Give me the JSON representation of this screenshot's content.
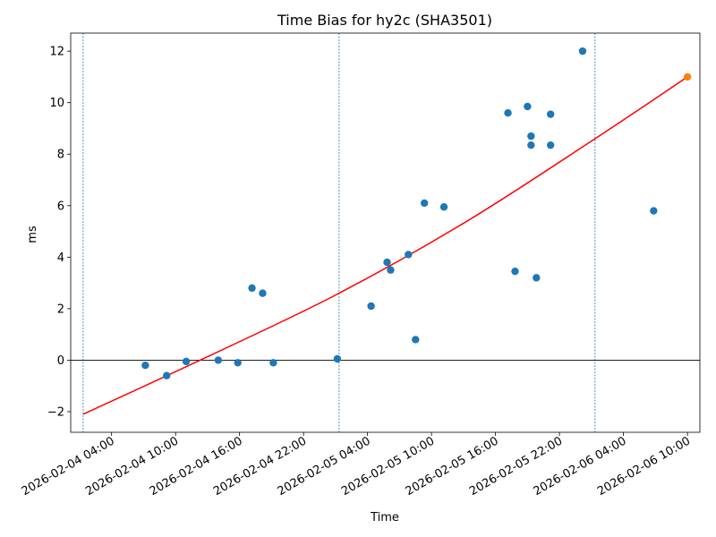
{
  "chart_data": {
    "type": "scatter",
    "title": "Time Bias for hy2c (SHA3501)",
    "xlabel": "Time",
    "ylabel": "ms",
    "x_is_datetime": true,
    "xlim": [
      "2026-02-04T00:10",
      "2026-02-06T11:10"
    ],
    "ylim": [
      -2.8,
      12.7
    ],
    "xticks": [
      {
        "t": "2026-02-04T04:00",
        "label": "2026-02-04 04:00"
      },
      {
        "t": "2026-02-04T10:00",
        "label": "2026-02-04 10:00"
      },
      {
        "t": "2026-02-04T16:00",
        "label": "2026-02-04 16:00"
      },
      {
        "t": "2026-02-04T22:00",
        "label": "2026-02-04 22:00"
      },
      {
        "t": "2026-02-05T04:00",
        "label": "2026-02-05 04:00"
      },
      {
        "t": "2026-02-05T10:00",
        "label": "2026-02-05 10:00"
      },
      {
        "t": "2026-02-05T16:00",
        "label": "2026-02-05 16:00"
      },
      {
        "t": "2026-02-05T22:00",
        "label": "2026-02-05 22:00"
      },
      {
        "t": "2026-02-06T04:00",
        "label": "2026-02-06 04:00"
      },
      {
        "t": "2026-02-06T10:00",
        "label": "2026-02-06 10:00"
      }
    ],
    "yticks": [
      -2,
      0,
      2,
      4,
      6,
      8,
      10,
      12
    ],
    "grid": false,
    "colors": {
      "points": "#1f77b4",
      "highlight": "#ff7f0e",
      "fit": "#ff0000",
      "vlines": "#1f77b4",
      "zero_line": "#000000"
    },
    "vlines": [
      "2026-02-04T01:20",
      "2026-02-05T01:20",
      "2026-02-06T01:20"
    ],
    "zero_line": 0,
    "fit_curve": {
      "x": [
        "2026-02-04T01:20",
        "2026-02-04T13:20",
        "2026-02-05T01:20",
        "2026-02-05T13:20",
        "2026-02-06T01:20",
        "2026-02-06T10:00"
      ],
      "y": [
        -2.1,
        0.2,
        2.6,
        5.4,
        8.6,
        11.0
      ]
    },
    "series": [
      {
        "x": [
          "2026-02-04T07:10",
          "2026-02-04T09:10",
          "2026-02-04T11:00",
          "2026-02-04T14:00",
          "2026-02-04T15:50",
          "2026-02-04T17:10",
          "2026-02-04T19:10",
          "2026-02-04T18:10",
          "2026-02-05T01:10",
          "2026-02-05T04:20",
          "2026-02-05T05:50",
          "2026-02-05T06:10",
          "2026-02-05T07:50",
          "2026-02-05T08:30",
          "2026-02-05T09:20",
          "2026-02-05T11:10",
          "2026-02-05T17:10",
          "2026-02-05T17:50",
          "2026-02-05T19:00",
          "2026-02-05T19:20",
          "2026-02-05T19:20",
          "2026-02-05T19:50",
          "2026-02-05T21:10",
          "2026-02-05T21:10",
          "2026-02-06T00:10",
          "2026-02-06T06:50"
        ],
        "y": [
          -0.2,
          -0.6,
          -0.05,
          0.0,
          -0.1,
          2.8,
          -0.1,
          2.6,
          0.05,
          2.1,
          3.8,
          3.5,
          4.1,
          0.8,
          6.1,
          5.95,
          9.6,
          3.45,
          9.85,
          8.7,
          8.35,
          3.2,
          9.55,
          8.35,
          12.0,
          5.8
        ]
      },
      {
        "x": [
          "2026-02-06T10:00"
        ],
        "y": [
          11.0
        ]
      }
    ]
  }
}
